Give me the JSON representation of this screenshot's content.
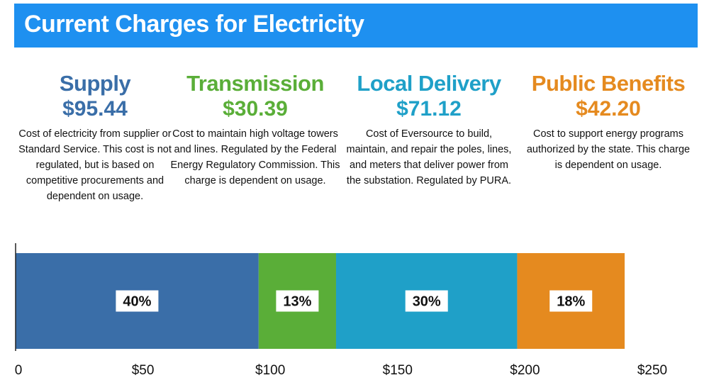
{
  "header": {
    "title": "Current Charges for Electricity"
  },
  "categories": [
    {
      "name": "Supply",
      "amount": "$95.44",
      "description": "Cost of electricity from supplier or Standard Service. This cost is not regulated, but is based on competitive procurements and dependent on usage.",
      "color": "#3a6ea8"
    },
    {
      "name": "Transmission",
      "amount": "$30.39",
      "description": "Cost to maintain high voltage towers and lines. Regulated by the Federal Energy Regulatory Commission. This charge is dependent on usage.",
      "color": "#5aae38"
    },
    {
      "name": "Local Delivery",
      "amount": "$71.12",
      "description": "Cost of Eversource to build, maintain, and repair the poles, lines, and meters that deliver power from the substation. Regulated by PURA.",
      "color": "#1fa0c8"
    },
    {
      "name": "Public Benefits",
      "amount": "$42.20",
      "description": "Cost to support energy programs authorized by the state. This charge is dependent on usage.",
      "color": "#e58a1f"
    }
  ],
  "chart_data": {
    "type": "bar",
    "orientation": "horizontal-stacked",
    "categories": [
      "Supply",
      "Transmission",
      "Local Delivery",
      "Public Benefits"
    ],
    "values": [
      95.44,
      30.39,
      71.12,
      42.2
    ],
    "percent_labels": [
      "40%",
      "13%",
      "30%",
      "18%"
    ],
    "colors": [
      "#3a6ea8",
      "#5aae38",
      "#1fa0c8",
      "#e58a1f"
    ],
    "xlim": [
      0,
      250
    ],
    "x_ticks": [
      0,
      50,
      100,
      150,
      200,
      250
    ],
    "x_tick_labels": [
      "0",
      "$50",
      "$100",
      "$150",
      "$200",
      "$250"
    ],
    "grid": false,
    "title": ""
  }
}
